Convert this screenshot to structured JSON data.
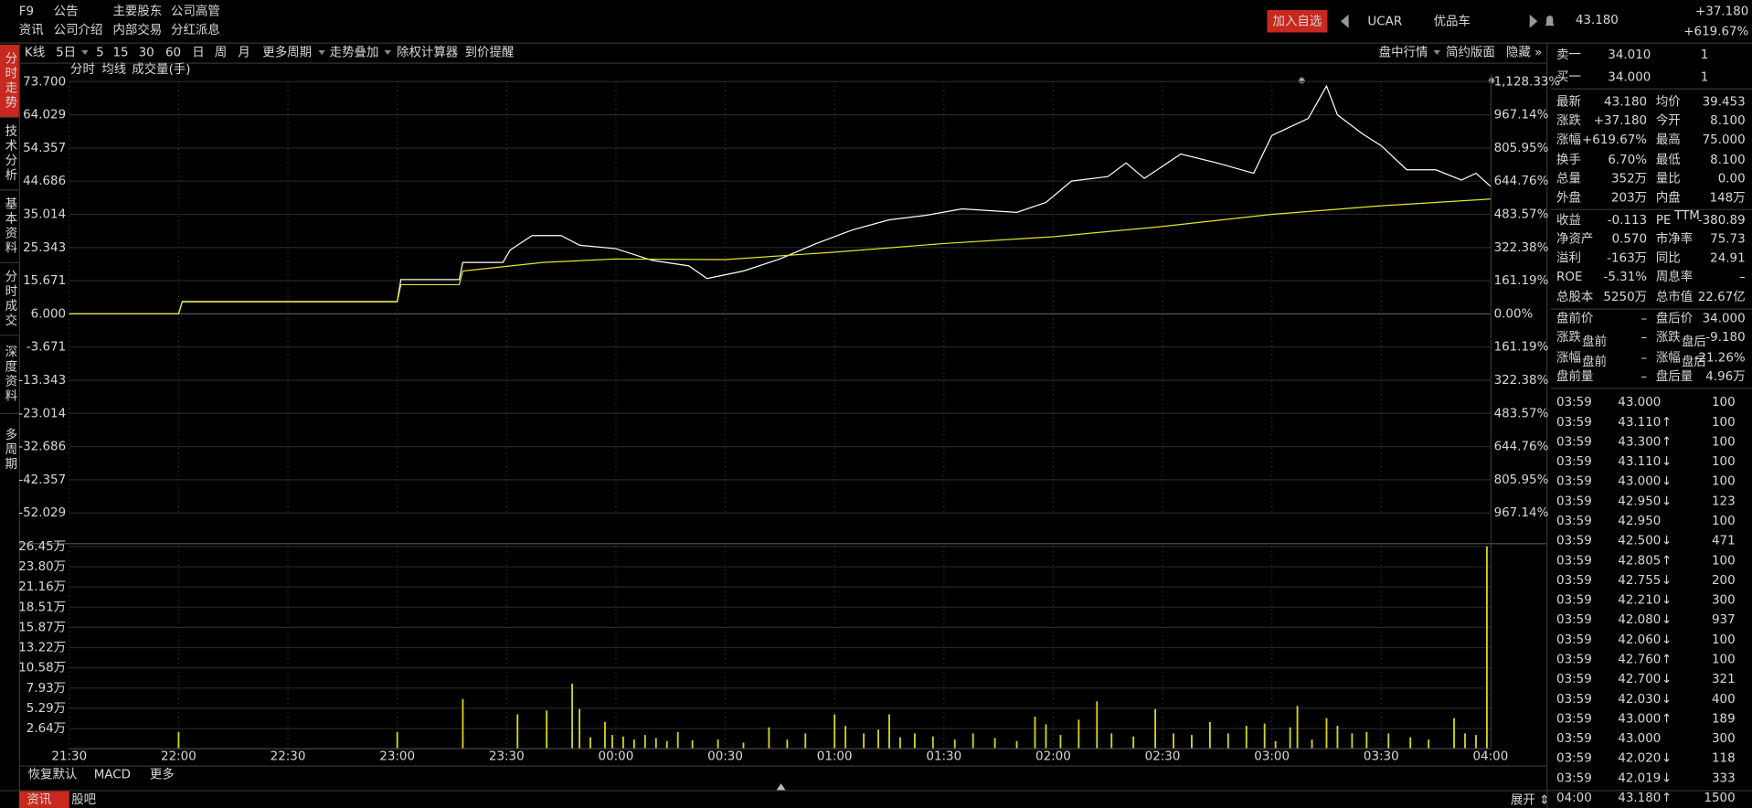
{
  "menu": [
    [
      "F9",
      "资讯"
    ],
    [
      "公告",
      "公司介绍"
    ],
    [
      "主要股东",
      "内部交易"
    ],
    [
      "公司高管",
      "分红派息"
    ]
  ],
  "header": {
    "add_watch": "加入自选",
    "code": "UCAR",
    "name": "优品车",
    "price": "43.180",
    "change": "+37.180",
    "change_pct": "+619.67%"
  },
  "side_tabs": [
    "分时走势",
    "技术分析",
    "基本资料",
    "分时成交",
    "深度资料",
    "多周期"
  ],
  "toolbar": [
    "K线",
    "5日",
    "5",
    "15",
    "30",
    "60",
    "日",
    "周",
    "月",
    "更多周期",
    "走势叠加",
    "除权计算器",
    "到价提醒"
  ],
  "toolbar_right": [
    "盘中行情",
    "简约版面",
    "隐藏 »"
  ],
  "legend": [
    "分时",
    "均线",
    "成交量(手)"
  ],
  "chart_data": [
    {
      "type": "line",
      "xlim": [
        "21:30",
        "04:00"
      ],
      "ylim": [
        -52.029,
        73.7
      ],
      "yticks": [
        {
          "value": 73.7,
          "label": "73.700"
        },
        {
          "value": 64.029,
          "label": "64.029"
        },
        {
          "value": 54.357,
          "label": "54.357"
        },
        {
          "value": 44.686,
          "label": "44.686"
        },
        {
          "value": 35.014,
          "label": "35.014"
        },
        {
          "value": 25.343,
          "label": "25.343"
        },
        {
          "value": 15.671,
          "label": "15.671"
        },
        {
          "value": 6.0,
          "label": "6.000"
        },
        {
          "value": -3.671,
          "label": "-3.671"
        },
        {
          "value": -13.343,
          "label": "-13.343"
        },
        {
          "value": -23.014,
          "label": "-23.014"
        },
        {
          "value": -32.686,
          "label": "-32.686"
        },
        {
          "value": -42.357,
          "label": "-42.357"
        },
        {
          "value": -52.029,
          "label": "-52.029"
        }
      ],
      "y2lim": [
        -967.14,
        1128.33
      ],
      "y2ticks": [
        {
          "value": 1128.33,
          "label": "1,128.33%"
        },
        {
          "value": 967.14,
          "label": "967.14%"
        },
        {
          "value": 805.95,
          "label": "805.95%"
        },
        {
          "value": 644.76,
          "label": "644.76%"
        },
        {
          "value": 483.57,
          "label": "483.57%"
        },
        {
          "value": 322.38,
          "label": "322.38%"
        },
        {
          "value": 161.19,
          "label": "161.19%"
        },
        {
          "value": 0,
          "label": "0.00%"
        },
        {
          "value": -161.19,
          "label": "161.19%"
        },
        {
          "value": -322.38,
          "label": "322.38%"
        },
        {
          "value": -483.57,
          "label": "483.57%"
        },
        {
          "value": -644.76,
          "label": "644.76%"
        },
        {
          "value": -805.95,
          "label": "805.95%"
        },
        {
          "value": -967.14,
          "label": "967.14%"
        }
      ],
      "series": [
        {
          "name": "分时",
          "color": "#ffffff",
          "x": [
            "21:30",
            "22:00",
            "22:01",
            "23:00",
            "23:01",
            "23:17",
            "23:18",
            "23:29",
            "23:31",
            "23:37",
            "23:45",
            "23:50",
            "00:00",
            "00:10",
            "00:20",
            "00:25",
            "00:35",
            "00:45",
            "00:55",
            "01:05",
            "01:15",
            "01:25",
            "01:35",
            "01:50",
            "01:58",
            "02:05",
            "02:15",
            "02:20",
            "02:25",
            "02:35",
            "02:45",
            "02:55",
            "03:00",
            "03:10",
            "03:15",
            "03:18",
            "03:25",
            "03:30",
            "03:37",
            "03:45",
            "03:52",
            "03:56",
            "04:00"
          ],
          "values": [
            6.0,
            6.0,
            9.6,
            9.6,
            16.0,
            16.0,
            21.0,
            21.0,
            24.6,
            28.8,
            28.8,
            26.0,
            25.0,
            21.6,
            20.0,
            16.3,
            18.5,
            22.0,
            26.5,
            30.5,
            33.4,
            34.7,
            36.6,
            35.6,
            38.5,
            44.7,
            46.0,
            50.0,
            45.5,
            52.6,
            50.0,
            47.0,
            58.0,
            63.0,
            72.4,
            64.0,
            58.4,
            55.0,
            48.0,
            48.0,
            45.0,
            47.0,
            43.18
          ]
        },
        {
          "name": "均线",
          "color": "#e6e62e",
          "x": [
            "21:30",
            "22:00",
            "22:01",
            "23:00",
            "23:01",
            "23:17",
            "23:18",
            "23:40",
            "00:00",
            "00:30",
            "01:00",
            "01:30",
            "02:00",
            "02:30",
            "03:00",
            "03:30",
            "04:00"
          ],
          "values": [
            6.0,
            6.0,
            9.5,
            9.5,
            14.5,
            14.5,
            18.5,
            21.0,
            22.0,
            21.8,
            24.0,
            26.5,
            28.5,
            31.5,
            35.0,
            37.5,
            39.453
          ]
        }
      ]
    },
    {
      "type": "bar",
      "color": "#d4d41e",
      "xlim": [
        "21:30",
        "04:00"
      ],
      "ylim": [
        0,
        26.45
      ],
      "yticks": [
        {
          "value": 26.45,
          "label": "26.45万"
        },
        {
          "value": 23.8,
          "label": "23.80万"
        },
        {
          "value": 21.16,
          "label": "21.16万"
        },
        {
          "value": 18.51,
          "label": "18.51万"
        },
        {
          "value": 15.87,
          "label": "15.87万"
        },
        {
          "value": 13.22,
          "label": "13.22万"
        },
        {
          "value": 10.58,
          "label": "10.58万"
        },
        {
          "value": 7.93,
          "label": "7.93万"
        },
        {
          "value": 5.29,
          "label": "5.29万"
        },
        {
          "value": 2.64,
          "label": "2.64万"
        }
      ],
      "xticks": [
        "21:30",
        "22:00",
        "22:30",
        "23:00",
        "23:30",
        "00:00",
        "00:30",
        "01:00",
        "01:30",
        "02:00",
        "02:30",
        "03:00",
        "03:30",
        "04:00"
      ],
      "x": [
        "22:00",
        "23:00",
        "23:18",
        "23:33",
        "23:41",
        "23:48",
        "23:50",
        "23:53",
        "23:57",
        "23:59",
        "00:02",
        "00:05",
        "00:08",
        "00:11",
        "00:14",
        "00:17",
        "00:21",
        "00:28",
        "00:35",
        "00:42",
        "00:47",
        "00:52",
        "01:00",
        "01:03",
        "01:08",
        "01:12",
        "01:15",
        "01:18",
        "01:22",
        "01:27",
        "01:33",
        "01:38",
        "01:44",
        "01:50",
        "01:55",
        "01:58",
        "02:02",
        "02:07",
        "02:12",
        "02:16",
        "02:22",
        "02:28",
        "02:33",
        "02:38",
        "02:43",
        "02:48",
        "02:53",
        "02:58",
        "03:01",
        "03:05",
        "03:07",
        "03:11",
        "03:15",
        "03:18",
        "03:22",
        "03:26",
        "03:32",
        "03:38",
        "03:43",
        "03:50",
        "03:53",
        "03:56",
        "03:59"
      ],
      "values": [
        2.2,
        2.2,
        6.5,
        4.5,
        5.0,
        8.5,
        5.2,
        1.5,
        3.5,
        1.8,
        1.6,
        1.2,
        1.8,
        1.4,
        1.0,
        2.2,
        1.1,
        1.2,
        0.8,
        2.8,
        1.2,
        2.0,
        4.5,
        3.0,
        2.0,
        2.5,
        4.5,
        1.5,
        2.0,
        1.6,
        1.2,
        2.0,
        1.4,
        1.0,
        4.2,
        3.2,
        1.8,
        3.8,
        6.2,
        2.0,
        1.6,
        5.2,
        2.0,
        1.8,
        3.5,
        2.0,
        3.0,
        3.3,
        1.0,
        2.8,
        5.6,
        1.2,
        4.0,
        3.0,
        2.0,
        2.2,
        2.0,
        1.5,
        1.2,
        4.0,
        2.0,
        1.8,
        26.45
      ]
    }
  ],
  "orderbook": [
    {
      "label": "卖一",
      "price": "34.010",
      "vol": "1"
    },
    {
      "label": "买一",
      "price": "34.000",
      "vol": "1"
    }
  ],
  "stats": [
    {
      "l1": "最新",
      "v1": "43.180",
      "c1": "#ff3c3c",
      "l2": "均价",
      "v2": "39.453",
      "c2": "#ff3c3c"
    },
    {
      "l1": "涨跌",
      "v1": "+37.180",
      "c1": "#ff3c3c",
      "l2": "今开",
      "v2": "8.100",
      "c2": "#ff3c3c"
    },
    {
      "l1": "涨幅",
      "v1": "+619.67%",
      "c1": "#ff3c3c",
      "l2": "最高",
      "v2": "75.000",
      "c2": "#ff3c3c"
    },
    {
      "l1": "换手",
      "v1": "6.70%",
      "c1": "#d8d8d8",
      "l2": "最低",
      "v2": "8.100",
      "c2": "#ff3c3c"
    },
    {
      "l1": "总量",
      "v1": "352万",
      "c1": "#d8d8d8",
      "l2": "量比",
      "v2": "0.00",
      "c2": "#d8d8d8"
    },
    {
      "l1": "外盘",
      "v1": "203万",
      "c1": "#ff3c3c",
      "l2": "内盘",
      "v2": "148万",
      "c2": "#22cc22"
    },
    {
      "l1": "收益",
      "v1": "-0.113",
      "c1": "#d8d8d8",
      "l2": "PE",
      "p2": "TTM",
      "v2": "-380.89",
      "c2": "#d8d8d8"
    },
    {
      "l1": "净资产",
      "v1": "0.570",
      "c1": "#d8d8d8",
      "l2": "市净率",
      "v2": "75.73",
      "c2": "#d8d8d8"
    },
    {
      "l1": "溢利",
      "v1": "-163万",
      "c1": "#d8d8d8",
      "l2": "同比",
      "v2": "24.91",
      "c2": "#d8d8d8"
    },
    {
      "l1": "ROE",
      "v1": "-5.31%",
      "c1": "#d8d8d8",
      "l2": "周息率",
      "v2": "–",
      "c2": "#d8d8d8"
    },
    {
      "l1": "总股本",
      "v1": "5250万",
      "c1": "#d8d8d8",
      "l2": "总市值",
      "v2": "22.67亿",
      "c2": "#d8d8d8"
    },
    {
      "l1": "盘前价",
      "v1": "–",
      "c1": "#d8d8d8",
      "l2": "盘后价",
      "v2": "34.000",
      "c2": "#22cc22"
    },
    {
      "l1": "涨跌",
      "s1": "盘前",
      "v1": "–",
      "c1": "#d8d8d8",
      "l2": "涨跌",
      "s2": "盘后",
      "v2": "-9.180",
      "c2": "#22cc22"
    },
    {
      "l1": "涨幅",
      "s1": "盘前",
      "v1": "–",
      "c1": "#d8d8d8",
      "l2": "涨幅",
      "s2": "盘后",
      "v2": "-21.26%",
      "c2": "#22cc22"
    },
    {
      "l1": "盘前量",
      "v1": "–",
      "c1": "#d8d8d8",
      "l2": "盘后量",
      "v2": "4.96万",
      "c2": "#d8d8d8"
    }
  ],
  "trades": [
    {
      "time": "03:59",
      "price": "43.000",
      "vol": "100",
      "vol_color": "#22cc22"
    },
    {
      "time": "03:59",
      "price": "43.110",
      "arrow": "↑",
      "arrow_color": "#ff3c3c",
      "vol": "100",
      "vol_color": "#22cc22"
    },
    {
      "time": "03:59",
      "price": "43.300",
      "arrow": "↑",
      "arrow_color": "#ff3c3c",
      "vol": "100",
      "vol_color": "#22cc22"
    },
    {
      "time": "03:59",
      "price": "43.110",
      "arrow": "↓",
      "arrow_color": "#22cc22",
      "vol": "100",
      "vol_color": "#22cc22"
    },
    {
      "time": "03:59",
      "price": "43.000",
      "arrow": "↓",
      "arrow_color": "#22cc22",
      "vol": "100",
      "vol_color": "#22cc22"
    },
    {
      "time": "03:59",
      "price": "42.950",
      "arrow": "↓",
      "arrow_color": "#22cc22",
      "vol": "123",
      "vol_color": "#22cc22"
    },
    {
      "time": "03:59",
      "price": "42.950",
      "vol": "100",
      "vol_color": "#22cc22"
    },
    {
      "time": "03:59",
      "price": "42.500",
      "arrow": "↓",
      "arrow_color": "#22cc22",
      "vol": "471",
      "vol_color": "#ff3c3c"
    },
    {
      "time": "03:59",
      "price": "42.805",
      "arrow": "↑",
      "arrow_color": "#ff3c3c",
      "vol": "100",
      "vol_color": "#22cc22"
    },
    {
      "time": "03:59",
      "price": "42.755",
      "arrow": "↓",
      "arrow_color": "#22cc22",
      "vol": "200",
      "vol_color": "#ff3c3c"
    },
    {
      "time": "03:59",
      "price": "42.210",
      "arrow": "↓",
      "arrow_color": "#22cc22",
      "vol": "300",
      "vol_color": "#22cc22"
    },
    {
      "time": "03:59",
      "price": "42.080",
      "arrow": "↓",
      "arrow_color": "#22cc22",
      "vol": "937",
      "vol_color": "#22cc22"
    },
    {
      "time": "03:59",
      "price": "42.060",
      "arrow": "↓",
      "arrow_color": "#22cc22",
      "vol": "100",
      "vol_color": "#22cc22"
    },
    {
      "time": "03:59",
      "price": "42.760",
      "arrow": "↑",
      "arrow_color": "#ff3c3c",
      "vol": "100",
      "vol_color": "#ff3c3c"
    },
    {
      "time": "03:59",
      "price": "42.700",
      "arrow": "↓",
      "arrow_color": "#22cc22",
      "vol": "321",
      "vol_color": "#ff3c3c"
    },
    {
      "time": "03:59",
      "price": "42.030",
      "arrow": "↓",
      "arrow_color": "#22cc22",
      "vol": "400",
      "vol_color": "#22cc22"
    },
    {
      "time": "03:59",
      "price": "43.000",
      "arrow": "↑",
      "arrow_color": "#ff3c3c",
      "vol": "189",
      "vol_color": "#ff3c3c"
    },
    {
      "time": "03:59",
      "price": "43.000",
      "vol": "300",
      "vol_color": "#22cc22"
    },
    {
      "time": "03:59",
      "price": "42.020",
      "arrow": "↓",
      "arrow_color": "#22cc22",
      "vol": "118",
      "vol_color": "#22cc22"
    },
    {
      "time": "03:59",
      "price": "42.019",
      "arrow": "↓",
      "arrow_color": "#22cc22",
      "vol": "333",
      "vol_color": "#ff3c3c"
    },
    {
      "time": "04:00",
      "price": "43.180",
      "arrow": "↑",
      "arrow_color": "#ff3c3c",
      "vol": "1500",
      "vol_color": "#22cc22"
    }
  ],
  "indicator_tabs": [
    "恢复默认",
    "MACD",
    "更多"
  ],
  "bottom_tabs": [
    "资讯",
    "股吧"
  ],
  "expand": "展开 ⇕"
}
